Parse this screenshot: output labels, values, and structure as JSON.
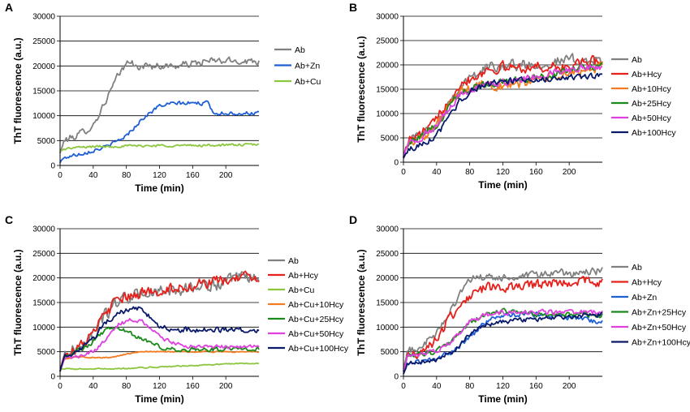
{
  "chart_data": [
    {
      "type": "line",
      "panel_label": "A",
      "xlabel": "Time (min)",
      "ylabel": "ThT fluorescence (a.u.)",
      "xlim": [
        0,
        240
      ],
      "ylim": [
        0,
        30000
      ],
      "xticks": [
        0,
        40,
        80,
        120,
        160,
        200
      ],
      "yticks": [
        0,
        5000,
        10000,
        15000,
        20000,
        25000,
        30000
      ],
      "grid": "horizontal",
      "series": [
        {
          "name": "Ab",
          "color": "#808080",
          "noise": 700,
          "x": [
            0,
            5,
            20,
            40,
            55,
            70,
            85,
            90,
            100,
            120,
            140,
            160,
            180,
            200,
            220,
            240
          ],
          "y": [
            2500,
            5000,
            6000,
            8000,
            13000,
            18000,
            21500,
            19500,
            20000,
            20000,
            20000,
            20500,
            21000,
            21000,
            21000,
            21000
          ]
        },
        {
          "name": "Ab+Zn",
          "color": "#1f5fd6",
          "noise": 400,
          "x": [
            0,
            2,
            10,
            20,
            40,
            60,
            80,
            100,
            120,
            140,
            160,
            180,
            185,
            200,
            220,
            240
          ],
          "y": [
            500,
            1200,
            1800,
            2200,
            3000,
            4000,
            6000,
            9500,
            12000,
            12500,
            12500,
            12500,
            10500,
            10500,
            10500,
            10500
          ]
        },
        {
          "name": "Ab+Cu",
          "color": "#8cc63f",
          "noise": 250,
          "x": [
            0,
            5,
            20,
            40,
            80,
            120,
            160,
            200,
            240
          ],
          "y": [
            2800,
            3300,
            3600,
            3800,
            3900,
            4000,
            4000,
            4100,
            4200
          ]
        }
      ]
    },
    {
      "type": "line",
      "panel_label": "B",
      "xlabel": "Time (min)",
      "ylabel": "ThT fluorescence (a.u.)",
      "xlim": [
        0,
        240
      ],
      "ylim": [
        0,
        30000
      ],
      "xticks": [
        0,
        40,
        80,
        120,
        160,
        200
      ],
      "yticks": [
        0,
        5000,
        10000,
        15000,
        20000,
        25000,
        30000
      ],
      "grid": "horizontal",
      "series": [
        {
          "name": "Ab",
          "color": "#808080",
          "noise": 1100,
          "x": [
            0,
            5,
            20,
            40,
            55,
            70,
            85,
            100,
            120,
            140,
            160,
            180,
            200,
            220,
            240
          ],
          "y": [
            1000,
            4500,
            5500,
            8000,
            12500,
            16000,
            17500,
            19500,
            20000,
            20000,
            20000,
            20500,
            21000,
            21000,
            20500
          ]
        },
        {
          "name": "Ab+Hcy",
          "color": "#e8201b",
          "noise": 1100,
          "x": [
            0,
            5,
            20,
            40,
            55,
            70,
            85,
            100,
            120,
            140,
            160,
            180,
            200,
            220,
            240
          ],
          "y": [
            1000,
            4500,
            5500,
            8500,
            13000,
            16500,
            17500,
            19000,
            19500,
            19500,
            19500,
            19500,
            19500,
            20500,
            21000
          ]
        },
        {
          "name": "Ab+10Hcy",
          "color": "#f47c20",
          "noise": 1000,
          "x": [
            0,
            5,
            20,
            40,
            55,
            70,
            85,
            100,
            120,
            140,
            160,
            180,
            200,
            220,
            240
          ],
          "y": [
            1000,
            4000,
            5000,
            7500,
            11500,
            14500,
            15500,
            16000,
            15500,
            16000,
            17000,
            17500,
            18000,
            19000,
            19500
          ]
        },
        {
          "name": "Ab+25Hcy",
          "color": "#1a8a1a",
          "noise": 700,
          "x": [
            0,
            5,
            20,
            40,
            55,
            70,
            85,
            100,
            120,
            140,
            160,
            180,
            200,
            220,
            240
          ],
          "y": [
            1000,
            4000,
            5000,
            7500,
            11500,
            14500,
            15500,
            16000,
            16500,
            17000,
            17500,
            18000,
            19000,
            19500,
            20000
          ]
        },
        {
          "name": "Ab+50Hcy",
          "color": "#e040e0",
          "noise": 700,
          "x": [
            0,
            5,
            20,
            40,
            55,
            70,
            85,
            100,
            120,
            140,
            160,
            180,
            200,
            220,
            240
          ],
          "y": [
            1000,
            4000,
            5000,
            7000,
            11000,
            14000,
            15000,
            16000,
            16500,
            17000,
            17500,
            18500,
            19000,
            19500,
            19500
          ]
        },
        {
          "name": "Ab+100Hcy",
          "color": "#0a1a6b",
          "noise": 600,
          "x": [
            0,
            5,
            20,
            40,
            55,
            70,
            85,
            100,
            120,
            140,
            160,
            180,
            200,
            220,
            240
          ],
          "y": [
            800,
            2500,
            3500,
            5500,
            9000,
            13000,
            15000,
            16000,
            16500,
            17000,
            17000,
            17000,
            17500,
            17500,
            18000
          ]
        }
      ]
    },
    {
      "type": "line",
      "panel_label": "C",
      "xlabel": "Time (min)",
      "ylabel": "ThT fluorescence (a.u.)",
      "xlim": [
        0,
        240
      ],
      "ylim": [
        0,
        30000
      ],
      "xticks": [
        0,
        40,
        80,
        120,
        160,
        200
      ],
      "yticks": [
        0,
        5000,
        10000,
        15000,
        20000,
        25000,
        30000
      ],
      "grid": "horizontal",
      "series": [
        {
          "name": "Ab",
          "color": "#808080",
          "noise": 1300,
          "x": [
            0,
            5,
            20,
            40,
            55,
            70,
            85,
            100,
            120,
            140,
            160,
            180,
            200,
            220,
            240
          ],
          "y": [
            1000,
            4500,
            5500,
            8000,
            12500,
            15500,
            16000,
            17000,
            17000,
            17500,
            18000,
            18500,
            19000,
            20000,
            20000
          ]
        },
        {
          "name": "Ab+Hcy",
          "color": "#e8201b",
          "noise": 1100,
          "x": [
            0,
            5,
            20,
            40,
            55,
            70,
            85,
            100,
            120,
            140,
            160,
            180,
            200,
            220,
            240
          ],
          "y": [
            1000,
            4500,
            5500,
            8500,
            13000,
            15500,
            16000,
            17000,
            17500,
            18000,
            18500,
            19000,
            19500,
            20000,
            20000
          ]
        },
        {
          "name": "Ab+Cu",
          "color": "#8cc63f",
          "noise": 120,
          "x": [
            0,
            10,
            40,
            80,
            120,
            160,
            200,
            240
          ],
          "y": [
            1500,
            1500,
            1500,
            1600,
            1900,
            2200,
            2500,
            2700
          ]
        },
        {
          "name": "Ab+Cu+10Hcy",
          "color": "#f47c20",
          "noise": 120,
          "x": [
            0,
            5,
            20,
            40,
            60,
            80,
            100,
            120,
            160,
            200,
            240
          ],
          "y": [
            1000,
            3500,
            4000,
            3800,
            3800,
            4500,
            5000,
            5000,
            5000,
            5000,
            5000
          ]
        },
        {
          "name": "Ab+Cu+25Hcy",
          "color": "#1a8a1a",
          "noise": 450,
          "x": [
            0,
            5,
            20,
            40,
            55,
            65,
            80,
            100,
            120,
            140,
            160,
            200,
            240
          ],
          "y": [
            1000,
            4000,
            5000,
            7000,
            9500,
            10000,
            9000,
            7500,
            6000,
            5500,
            5500,
            5500,
            5500
          ]
        },
        {
          "name": "Ab+Cu+50Hcy",
          "color": "#e040e0",
          "noise": 400,
          "x": [
            0,
            5,
            20,
            40,
            55,
            70,
            85,
            100,
            120,
            140,
            160,
            200,
            240
          ],
          "y": [
            1000,
            3500,
            4000,
            5000,
            7500,
            10500,
            11500,
            11000,
            8000,
            6500,
            6000,
            6000,
            6000
          ]
        },
        {
          "name": "Ab+Cu+100Hcy",
          "color": "#0a1a6b",
          "noise": 550,
          "x": [
            0,
            5,
            20,
            40,
            55,
            70,
            85,
            95,
            105,
            120,
            140,
            160,
            200,
            240
          ],
          "y": [
            1000,
            4000,
            5000,
            7500,
            11000,
            13000,
            13500,
            14000,
            12500,
            10000,
            9500,
            9500,
            9500,
            9500
          ]
        }
      ]
    },
    {
      "type": "line",
      "panel_label": "D",
      "xlabel": "Time (min)",
      "ylabel": "ThT fluorescence (a.u.)",
      "xlim": [
        0,
        240
      ],
      "ylim": [
        0,
        30000
      ],
      "xticks": [
        0,
        40,
        80,
        120,
        160,
        200
      ],
      "yticks": [
        0,
        5000,
        10000,
        15000,
        20000,
        25000,
        30000
      ],
      "grid": "horizontal",
      "series": [
        {
          "name": "Ab",
          "color": "#808080",
          "noise": 800,
          "x": [
            0,
            5,
            20,
            40,
            55,
            70,
            85,
            100,
            120,
            140,
            160,
            180,
            200,
            220,
            240
          ],
          "y": [
            1500,
            5000,
            6000,
            8500,
            13000,
            17500,
            20000,
            20000,
            20000,
            20000,
            20500,
            21000,
            21000,
            21000,
            21500
          ]
        },
        {
          "name": "Ab+Hcy",
          "color": "#e8201b",
          "noise": 1000,
          "x": [
            0,
            5,
            20,
            40,
            55,
            70,
            85,
            100,
            120,
            140,
            160,
            180,
            200,
            220,
            240
          ],
          "y": [
            1000,
            4000,
            5000,
            7500,
            11500,
            15000,
            17000,
            18000,
            18000,
            18000,
            18500,
            19000,
            19000,
            19500,
            19000
          ]
        },
        {
          "name": "Ab+Zn",
          "color": "#1f5fd6",
          "noise": 500,
          "x": [
            0,
            5,
            20,
            40,
            60,
            80,
            100,
            120,
            140,
            160,
            180,
            200,
            220,
            240
          ],
          "y": [
            500,
            2500,
            3000,
            3500,
            5000,
            8000,
            11000,
            12500,
            12500,
            12500,
            12500,
            12000,
            11500,
            11000
          ]
        },
        {
          "name": "Ab+Zn+25Hcy",
          "color": "#1a8a1a",
          "noise": 500,
          "x": [
            0,
            5,
            20,
            40,
            60,
            80,
            100,
            120,
            140,
            160,
            180,
            200,
            220,
            240
          ],
          "y": [
            1000,
            4000,
            4500,
            5000,
            7500,
            11000,
            12500,
            13500,
            13000,
            12500,
            12500,
            12500,
            12500,
            12500
          ]
        },
        {
          "name": "Ab+Zn+50Hcy",
          "color": "#e040e0",
          "noise": 500,
          "x": [
            0,
            5,
            20,
            40,
            60,
            80,
            100,
            120,
            140,
            160,
            180,
            200,
            220,
            240
          ],
          "y": [
            1000,
            4000,
            4500,
            5000,
            7500,
            11000,
            12500,
            13000,
            13000,
            13000,
            13000,
            13000,
            13000,
            13000
          ]
        },
        {
          "name": "Ab+Zn+100Hcy",
          "color": "#0a1a6b",
          "noise": 450,
          "x": [
            0,
            5,
            20,
            40,
            60,
            80,
            100,
            120,
            140,
            160,
            180,
            200,
            220,
            240
          ],
          "y": [
            500,
            2500,
            3000,
            3500,
            5000,
            8500,
            10500,
            11000,
            11500,
            11500,
            12000,
            12000,
            12500,
            12500
          ]
        }
      ]
    }
  ]
}
